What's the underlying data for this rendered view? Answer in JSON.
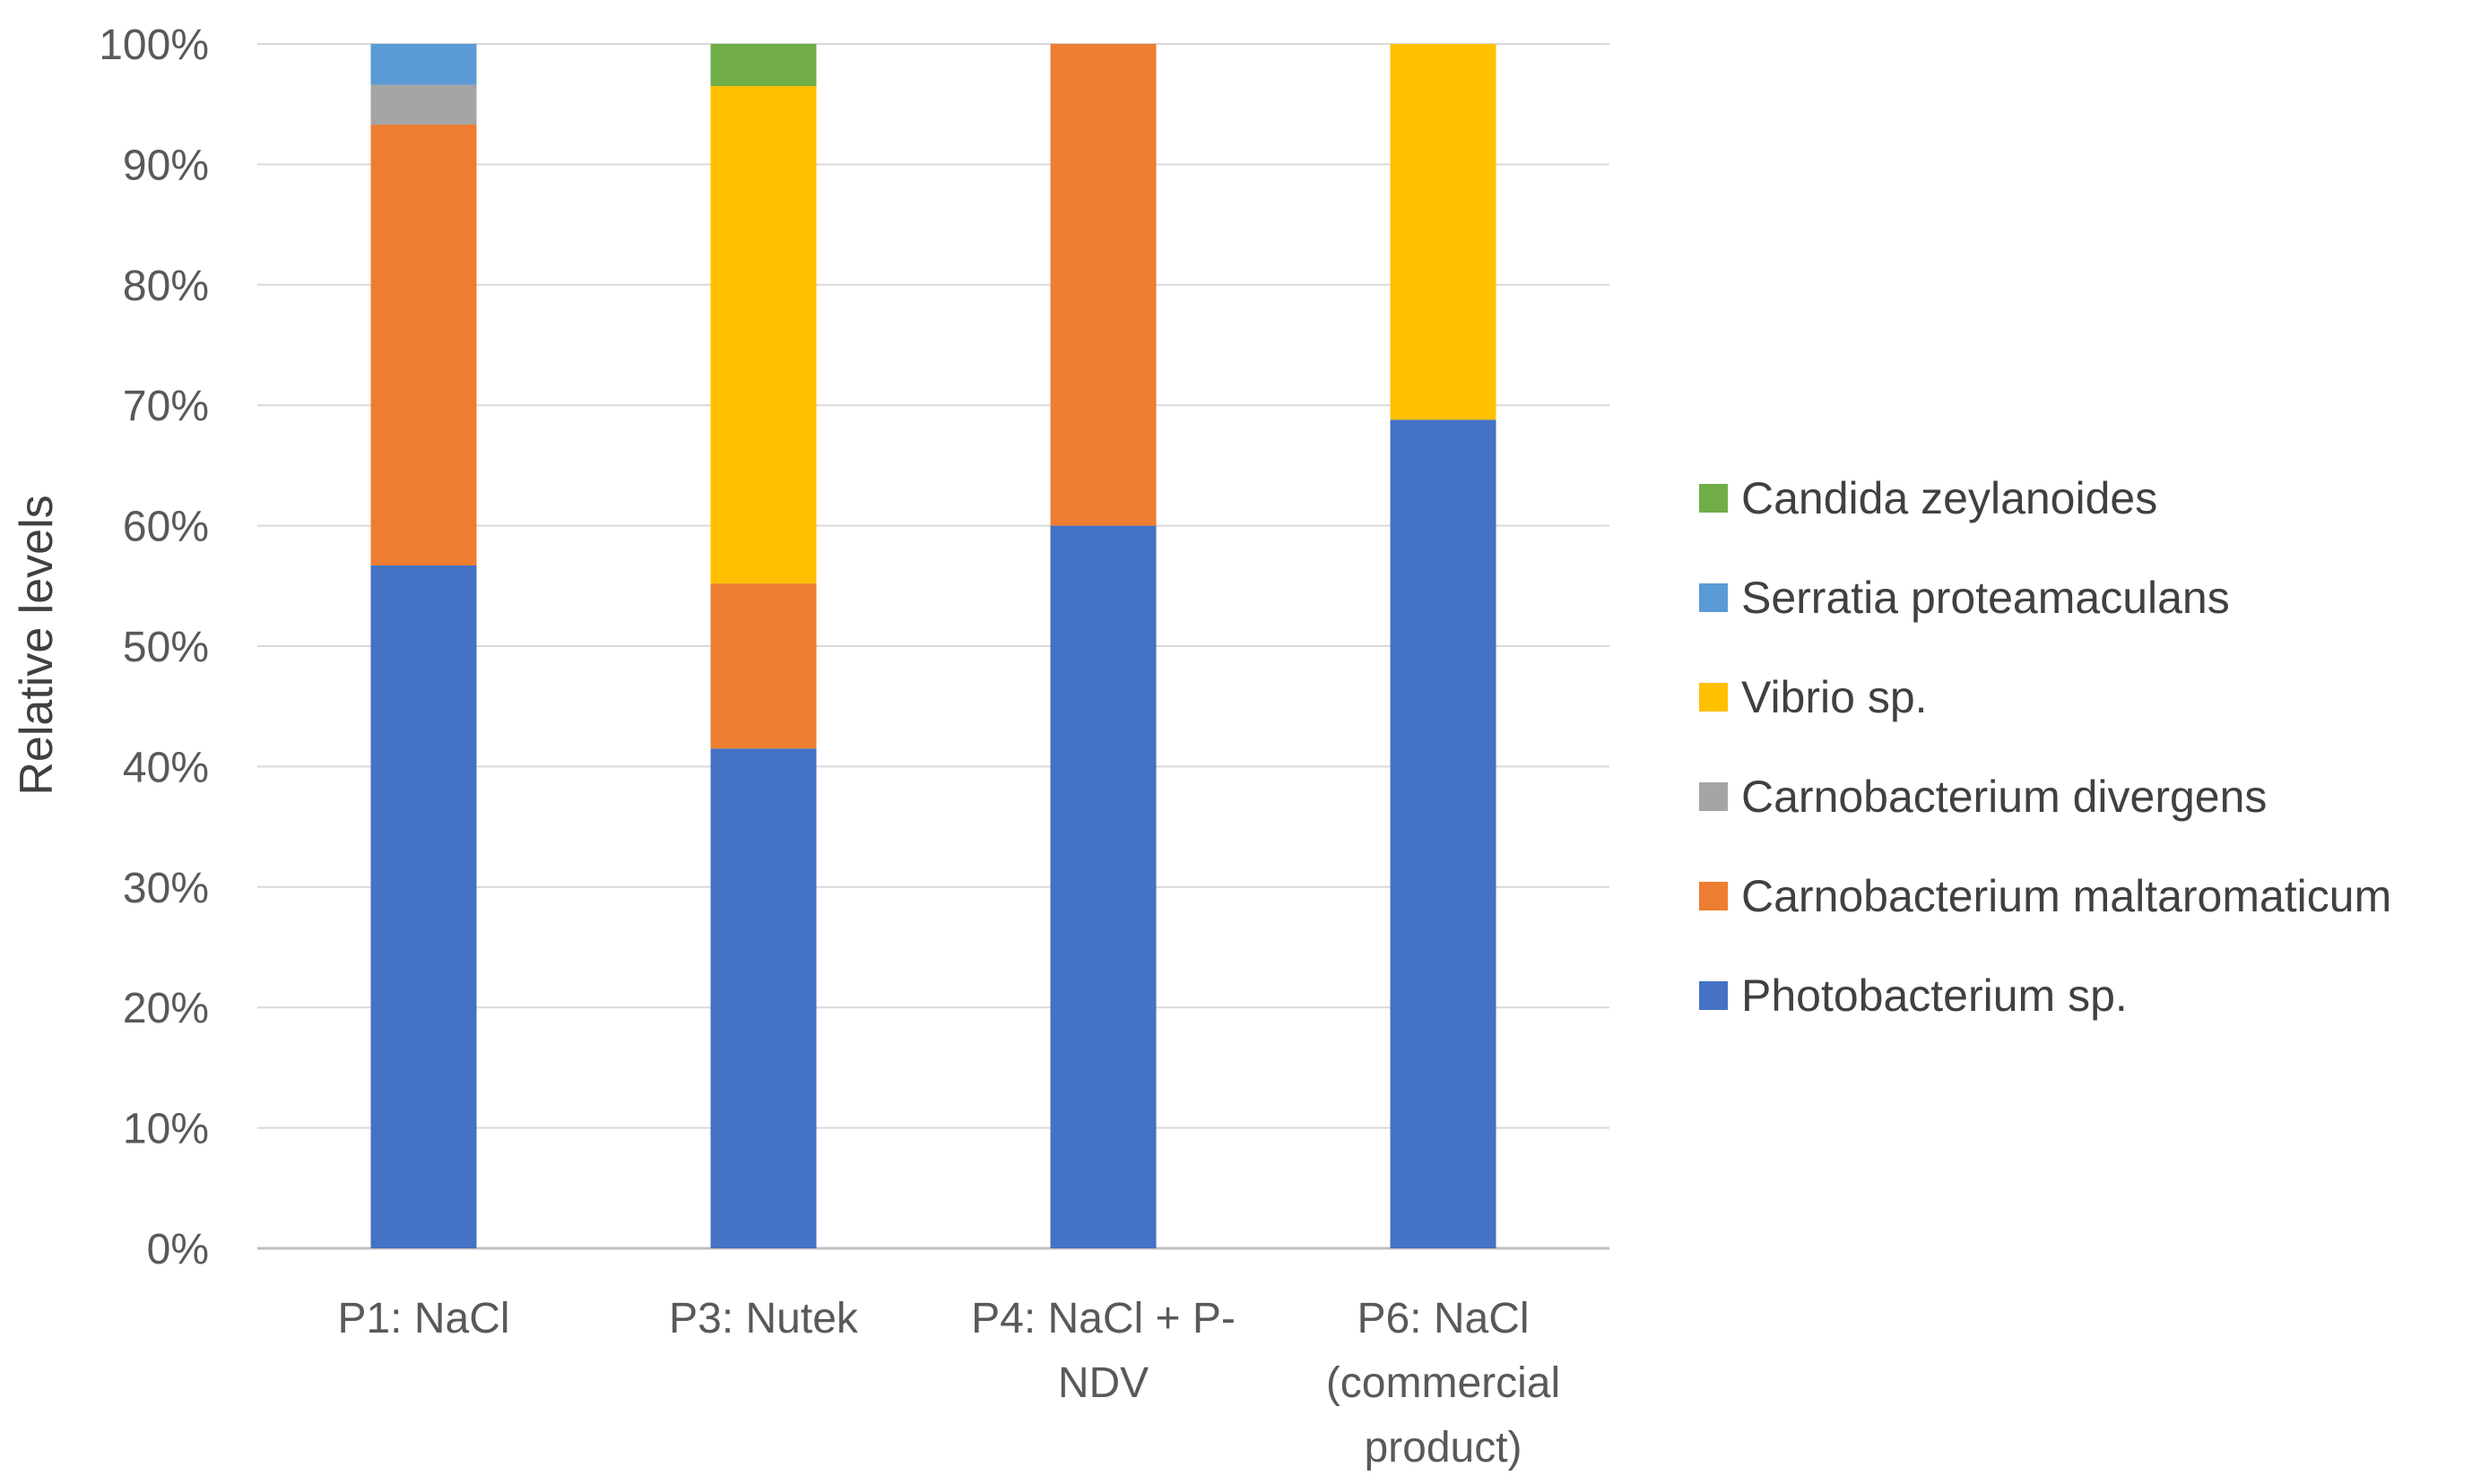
{
  "chart_data": {
    "type": "bar",
    "stacked": true,
    "title": "",
    "xlabel": "",
    "ylabel": "Relative levels",
    "ylim": [
      0,
      100
    ],
    "y_tick_format": "percent",
    "y_ticks": [
      "0%",
      "10%",
      "20%",
      "30%",
      "40%",
      "50%",
      "60%",
      "70%",
      "80%",
      "90%",
      "100%"
    ],
    "grid": true,
    "legend_position": "right",
    "categories": [
      [
        "P1: NaCl"
      ],
      [
        "P3: Nutek"
      ],
      [
        "P4: NaCl + P-",
        "NDV"
      ],
      [
        "P6: NaCl",
        "(commercial",
        "product)"
      ]
    ],
    "series": [
      {
        "name": "Photobacterium sp.",
        "color": "#4472C4",
        "values": [
          56.7,
          41.5,
          60.0,
          68.8
        ]
      },
      {
        "name": "Carnobacterium maltaromaticum",
        "color": "#ED7D31",
        "values": [
          36.6,
          13.7,
          40.0,
          0
        ]
      },
      {
        "name": "Carnobacterium divergens",
        "color": "#A5A5A5",
        "values": [
          3.3,
          0,
          0,
          0
        ]
      },
      {
        "name": "Vibrio sp.",
        "color": "#FFC000",
        "values": [
          0,
          41.3,
          0,
          31.2
        ]
      },
      {
        "name": "Serratia proteamaculans",
        "color": "#5B9BD5",
        "values": [
          3.4,
          0,
          0,
          0
        ]
      },
      {
        "name": "Candida zeylanoides",
        "color": "#70AD47",
        "values": [
          0,
          3.5,
          0,
          0
        ]
      }
    ]
  }
}
